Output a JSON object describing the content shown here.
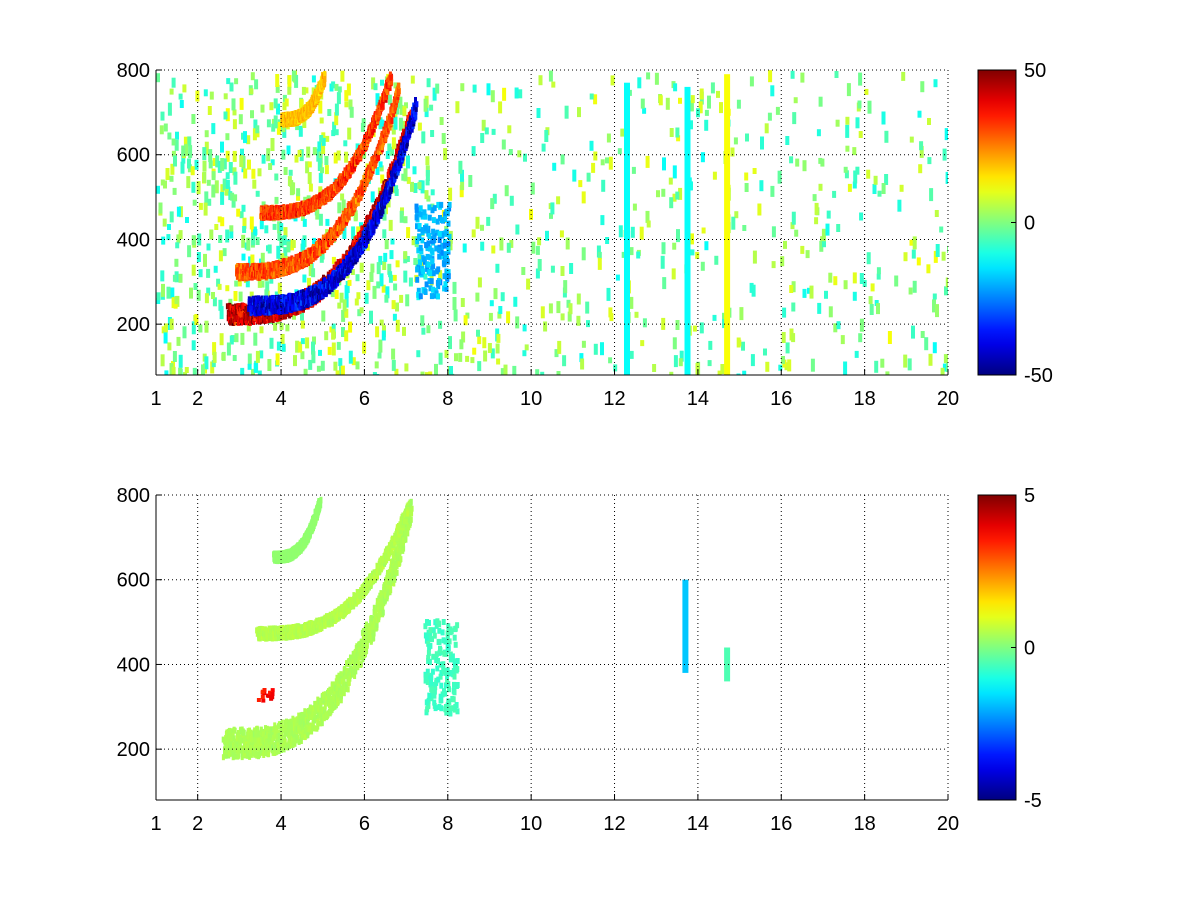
{
  "chart_data": [
    {
      "type": "heatmap",
      "title": "",
      "xlabel": "",
      "ylabel": "",
      "xlim": [
        1,
        20
      ],
      "ylim": [
        80,
        800
      ],
      "x_ticks": [
        "1",
        "2",
        "4",
        "6",
        "8",
        "10",
        "12",
        "14",
        "16",
        "18",
        "20"
      ],
      "x_tick_values": [
        1,
        2,
        4,
        6,
        8,
        10,
        12,
        14,
        16,
        18,
        20
      ],
      "y_ticks": [
        "200",
        "400",
        "600",
        "800"
      ],
      "y_tick_values": [
        200,
        400,
        600,
        800
      ],
      "grid": true,
      "colorbar": {
        "colormap": "jet",
        "range": [
          -50,
          50
        ],
        "ticks": [
          "50",
          "0",
          "-50"
        ],
        "tick_values": [
          50,
          0,
          -50
        ]
      },
      "features": [
        {
          "kind": "arc",
          "x_start": 2.7,
          "x_end": 7.1,
          "y_start": 230,
          "y_end": 700,
          "value": 50,
          "width": 0.35
        },
        {
          "kind": "arc",
          "x_start": 3.2,
          "x_end": 7.2,
          "y_start": 250,
          "y_end": 720,
          "value": -48,
          "width": 0.3
        },
        {
          "kind": "arc",
          "x_start": 2.9,
          "x_end": 6.8,
          "y_start": 330,
          "y_end": 760,
          "value": 35,
          "width": 0.25
        },
        {
          "kind": "arc",
          "x_start": 3.5,
          "x_end": 6.6,
          "y_start": 470,
          "y_end": 790,
          "value": 38,
          "width": 0.2
        },
        {
          "kind": "arc",
          "x_start": 4.0,
          "x_end": 5.0,
          "y_start": 690,
          "y_end": 790,
          "value": 22,
          "width": 0.2
        },
        {
          "kind": "blob",
          "x": 7.6,
          "y": 380,
          "value": -25
        },
        {
          "kind": "stripe",
          "x": 12.3,
          "y_from": 80,
          "y_to": 770,
          "value": -12
        },
        {
          "kind": "stripe",
          "x": 13.75,
          "y_from": 80,
          "y_to": 760,
          "value": -12
        },
        {
          "kind": "stripe",
          "x": 14.7,
          "y_from": 80,
          "y_to": 790,
          "value": 12
        }
      ],
      "noise": {
        "x_range": [
          1,
          20
        ],
        "y_range": [
          80,
          800
        ],
        "value_range": [
          -12,
          12
        ]
      }
    },
    {
      "type": "heatmap",
      "title": "",
      "xlabel": "",
      "ylabel": "",
      "xlim": [
        1,
        20
      ],
      "ylim": [
        80,
        800
      ],
      "x_ticks": [
        "1",
        "2",
        "4",
        "6",
        "8",
        "10",
        "12",
        "14",
        "16",
        "18",
        "20"
      ],
      "x_tick_values": [
        1,
        2,
        4,
        6,
        8,
        10,
        12,
        14,
        16,
        18,
        20
      ],
      "y_ticks": [
        "200",
        "400",
        "600",
        "800"
      ],
      "y_tick_values": [
        200,
        400,
        600,
        800
      ],
      "grid": true,
      "colorbar": {
        "colormap": "jet",
        "range": [
          -5,
          5
        ],
        "ticks": [
          "5",
          "0",
          "-5"
        ],
        "tick_values": [
          5,
          0,
          -5
        ]
      },
      "features": [
        {
          "kind": "arc",
          "x_start": 2.6,
          "x_end": 7.1,
          "y_start": 220,
          "y_end": 780,
          "value": 0.5,
          "width": 0.55
        },
        {
          "kind": "arc",
          "x_start": 3.4,
          "x_end": 7.0,
          "y_start": 480,
          "y_end": 770,
          "value": 0.6,
          "width": 0.2
        },
        {
          "kind": "arc",
          "x_start": 3.8,
          "x_end": 4.9,
          "y_start": 660,
          "y_end": 790,
          "value": 0.2,
          "width": 0.15
        },
        {
          "kind": "blob",
          "x": 7.8,
          "y": 400,
          "value": -0.8
        },
        {
          "kind": "spot",
          "x": 3.6,
          "y": 330,
          "value": 4.0
        },
        {
          "kind": "stripe",
          "x": 13.7,
          "y_from": 380,
          "y_to": 600,
          "value": -1.8
        },
        {
          "kind": "stripe",
          "x": 14.7,
          "y_from": 360,
          "y_to": 440,
          "value": -0.5
        }
      ]
    }
  ]
}
